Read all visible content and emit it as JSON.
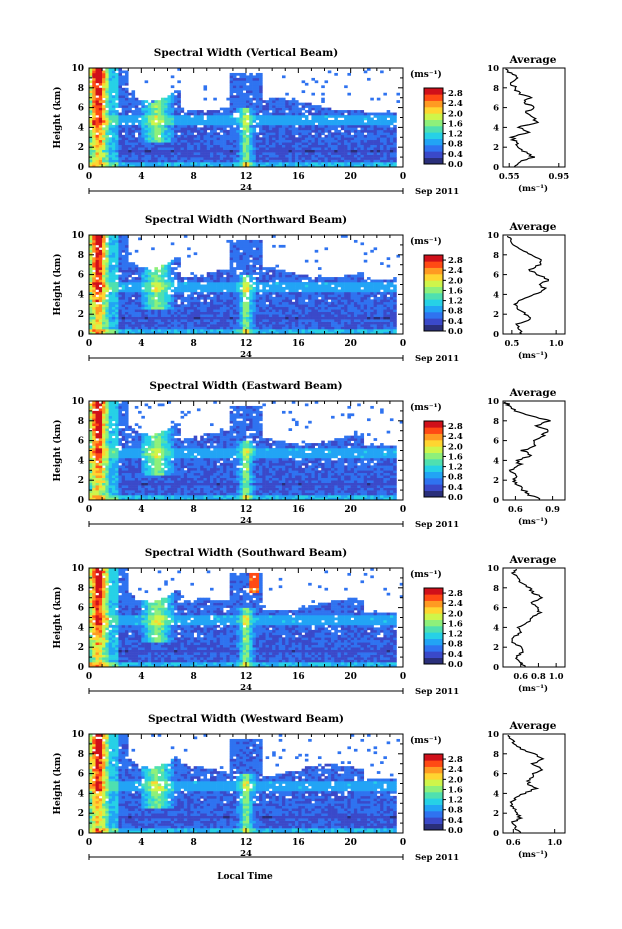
{
  "colors": {
    "colormap": [
      "#2a2f7a",
      "#3a49c9",
      "#2f73f0",
      "#22a4f5",
      "#26d1e6",
      "#4fe0b0",
      "#8ef07a",
      "#cff54a",
      "#ffd530",
      "#ff9a22",
      "#ff4a14",
      "#d0101a"
    ],
    "background": "#ffffff",
    "profile_line": "#000000"
  },
  "figure": {
    "xlabel": "Local Time",
    "date_label": "Sep 2011",
    "date_tick": "24",
    "units_label": "(ms⁻¹)",
    "ylabel": "Height (km)",
    "average_title": "Average"
  },
  "chart_data": [
    {
      "type": "heatmap",
      "title": "Spectral Width (Vertical Beam)",
      "xlabel": "Local Time",
      "ylabel": "Height (km)",
      "xlim": [
        0,
        24
      ],
      "ylim": [
        0,
        10
      ],
      "xticks": [
        "0",
        "4",
        "8",
        "12",
        "16",
        "20",
        "0"
      ],
      "yticks": [
        "0",
        "2",
        "4",
        "6",
        "8",
        "10"
      ],
      "colorbar": {
        "label": "(ms⁻¹)",
        "ticks": [
          "0.0",
          "0.4",
          "0.8",
          "1.2",
          "1.6",
          "2.0",
          "2.4",
          "2.8"
        ],
        "range": [
          0,
          3.0
        ]
      },
      "average_profile": {
        "title": "Average",
        "xlabel": "(ms⁻¹)",
        "xticks": [
          "0.55",
          "0.95"
        ],
        "xlim": [
          0.5,
          1.0
        ],
        "heights": [
          0,
          0.5,
          1,
          1.5,
          2,
          2.5,
          3,
          3.5,
          4,
          4.5,
          5,
          5.5,
          6,
          6.5,
          7,
          7.5,
          8,
          8.5,
          9,
          9.5,
          9.9
        ],
        "values": [
          0.6,
          0.63,
          0.75,
          0.68,
          0.62,
          0.6,
          0.58,
          0.7,
          0.62,
          0.78,
          0.74,
          0.68,
          0.76,
          0.66,
          0.72,
          0.62,
          0.6,
          0.55,
          0.62,
          0.56,
          0.52
        ]
      }
    },
    {
      "type": "heatmap",
      "title": "Spectral Width (Northward Beam)",
      "xlabel": "Local Time",
      "ylabel": "Height (km)",
      "xlim": [
        0,
        24
      ],
      "ylim": [
        0,
        10
      ],
      "xticks": [
        "0",
        "4",
        "8",
        "12",
        "16",
        "20",
        "0"
      ],
      "yticks": [
        "0",
        "2",
        "4",
        "6",
        "8",
        "10"
      ],
      "colorbar": {
        "label": "(ms⁻¹)",
        "ticks": [
          "0.0",
          "0.4",
          "0.8",
          "1.2",
          "1.6",
          "2.0",
          "2.4",
          "2.8"
        ],
        "range": [
          0,
          3.0
        ]
      },
      "average_profile": {
        "title": "Average",
        "xlabel": "(ms⁻¹)",
        "xticks": [
          "0.5",
          "1.0"
        ],
        "xlim": [
          0.4,
          1.1
        ],
        "heights": [
          0,
          0.5,
          1,
          1.5,
          2,
          2.5,
          3,
          3.5,
          4,
          4.5,
          5,
          5.5,
          6,
          6.5,
          7,
          7.5,
          8,
          8.5,
          9,
          9.5,
          9.9
        ],
        "values": [
          0.62,
          0.58,
          0.55,
          0.72,
          0.65,
          0.58,
          0.52,
          0.6,
          0.75,
          0.88,
          0.82,
          0.92,
          0.78,
          0.7,
          0.82,
          0.85,
          0.72,
          0.6,
          0.52,
          0.5,
          0.45
        ]
      }
    },
    {
      "type": "heatmap",
      "title": "Spectral Width (Eastward Beam)",
      "xlabel": "Local Time",
      "ylabel": "Height (km)",
      "xlim": [
        0,
        24
      ],
      "ylim": [
        0,
        10
      ],
      "xticks": [
        "0",
        "4",
        "8",
        "12",
        "16",
        "20",
        "0"
      ],
      "yticks": [
        "0",
        "2",
        "4",
        "6",
        "8",
        "10"
      ],
      "colorbar": {
        "label": "(ms⁻¹)",
        "ticks": [
          "0.0",
          "0.4",
          "0.8",
          "1.2",
          "1.6",
          "2.0",
          "2.4",
          "2.8"
        ],
        "range": [
          0,
          3.0
        ]
      },
      "average_profile": {
        "title": "Average",
        "xlabel": "(ms⁻¹)",
        "xticks": [
          "0.6",
          "0.9"
        ],
        "xlim": [
          0.5,
          1.0
        ],
        "heights": [
          0,
          0.5,
          1,
          1.5,
          2,
          2.5,
          3,
          3.5,
          4,
          4.5,
          5,
          5.5,
          6,
          6.5,
          7,
          7.5,
          8,
          8.5,
          9,
          9.5,
          9.9
        ],
        "values": [
          0.8,
          0.72,
          0.66,
          0.62,
          0.58,
          0.6,
          0.56,
          0.64,
          0.62,
          0.72,
          0.66,
          0.78,
          0.74,
          0.82,
          0.86,
          0.78,
          0.88,
          0.72,
          0.6,
          0.55,
          0.52
        ]
      }
    },
    {
      "type": "heatmap",
      "title": "Spectral Width (Southward Beam)",
      "xlabel": "Local Time",
      "ylabel": "Height (km)",
      "xlim": [
        0,
        24
      ],
      "ylim": [
        0,
        10
      ],
      "xticks": [
        "0",
        "4",
        "8",
        "12",
        "16",
        "20",
        "0"
      ],
      "yticks": [
        "0",
        "2",
        "4",
        "6",
        "8",
        "10"
      ],
      "colorbar": {
        "label": "(ms⁻¹)",
        "ticks": [
          "0.0",
          "0.4",
          "0.8",
          "1.2",
          "1.6",
          "2.0",
          "2.4",
          "2.8"
        ],
        "range": [
          0,
          3.0
        ]
      },
      "average_profile": {
        "title": "Average",
        "xlabel": "(ms⁻¹)",
        "xticks": [
          "0.6",
          "0.8",
          "1.0"
        ],
        "xlim": [
          0.4,
          1.1
        ],
        "heights": [
          0,
          0.5,
          1,
          1.5,
          2,
          2.5,
          3,
          3.5,
          4,
          4.5,
          5,
          5.5,
          6,
          6.5,
          7,
          7.5,
          8,
          8.5,
          9,
          9.5,
          9.9
        ],
        "values": [
          0.66,
          0.58,
          0.54,
          0.62,
          0.6,
          0.52,
          0.5,
          0.62,
          0.58,
          0.68,
          0.72,
          0.82,
          0.78,
          0.72,
          0.84,
          0.74,
          0.7,
          0.6,
          0.58,
          0.52,
          0.55
        ]
      }
    },
    {
      "type": "heatmap",
      "title": "Spectral Width (Westward Beam)",
      "xlabel": "Local Time",
      "ylabel": "Height (km)",
      "xlim": [
        0,
        24
      ],
      "ylim": [
        0,
        10
      ],
      "xticks": [
        "0",
        "4",
        "8",
        "12",
        "16",
        "20",
        "0"
      ],
      "yticks": [
        "0",
        "2",
        "4",
        "6",
        "8",
        "10"
      ],
      "colorbar": {
        "label": "(ms⁻¹)",
        "ticks": [
          "0.0",
          "0.4",
          "0.8",
          "1.2",
          "1.6",
          "2.0",
          "2.4",
          "2.8"
        ],
        "range": [
          0,
          3.0
        ]
      },
      "average_profile": {
        "title": "Average",
        "xlabel": "(ms⁻¹)",
        "xticks": [
          "0.6",
          "1.0"
        ],
        "xlim": [
          0.5,
          1.1
        ],
        "heights": [
          0,
          0.5,
          1,
          1.5,
          2,
          2.5,
          3,
          3.5,
          4,
          4.5,
          5,
          5.5,
          6,
          6.5,
          7,
          7.5,
          8,
          8.5,
          9,
          9.5,
          9.9
        ],
        "values": [
          0.68,
          0.62,
          0.58,
          0.66,
          0.64,
          0.6,
          0.58,
          0.62,
          0.7,
          0.82,
          0.74,
          0.76,
          0.8,
          0.88,
          0.78,
          0.9,
          0.8,
          0.66,
          0.62,
          0.58,
          0.55
        ]
      }
    }
  ]
}
